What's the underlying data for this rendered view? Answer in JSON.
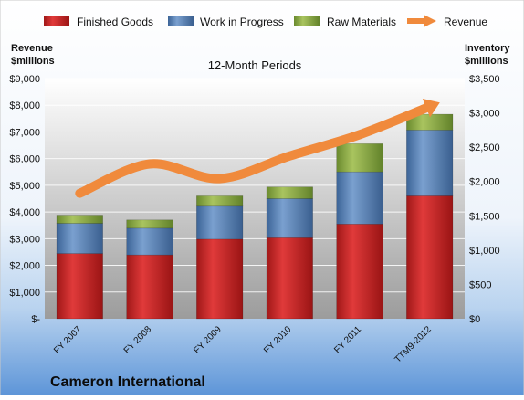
{
  "chart_data": {
    "type": "bar",
    "stacked": true,
    "subtitle": "12-Month Periods",
    "company": "Cameron International",
    "left_axis_label": [
      "Revenue",
      "$millions"
    ],
    "right_axis_label": [
      "Inventory",
      "$millions"
    ],
    "categories": [
      "FY 2007",
      "FY 2008",
      "FY 2009",
      "FY 2010",
      "FY 2011",
      "TTM9-2012"
    ],
    "left_ticks": [
      "$-",
      "$1,000",
      "$2,000",
      "$3,000",
      "$4,000",
      "$5,000",
      "$6,000",
      "$7,000",
      "$8,000",
      "$9,000"
    ],
    "right_ticks": [
      "$0",
      "$500",
      "$1,000",
      "$1,500",
      "$2,000",
      "$2,500",
      "$3,000",
      "$3,500"
    ],
    "left_ylim": [
      0,
      9000
    ],
    "right_ylim": [
      0,
      3500
    ],
    "legend_position": "top",
    "series": [
      {
        "name": "Finished Goods",
        "axis": "right",
        "color": "#cc2222",
        "values": [
          950,
          930,
          1160,
          1180,
          1380,
          1790
        ]
      },
      {
        "name": "Work in Progress",
        "axis": "right",
        "color": "#4f81bd",
        "values": [
          440,
          390,
          480,
          570,
          760,
          960
        ]
      },
      {
        "name": "Raw Materials",
        "axis": "right",
        "color": "#8fb04a",
        "values": [
          120,
          120,
          150,
          170,
          410,
          230
        ]
      }
    ],
    "line": {
      "name": "Revenue",
      "axis": "left",
      "color": "#f08a3c",
      "values": [
        4700,
        5800,
        5250,
        6100,
        6900,
        7950
      ]
    }
  }
}
